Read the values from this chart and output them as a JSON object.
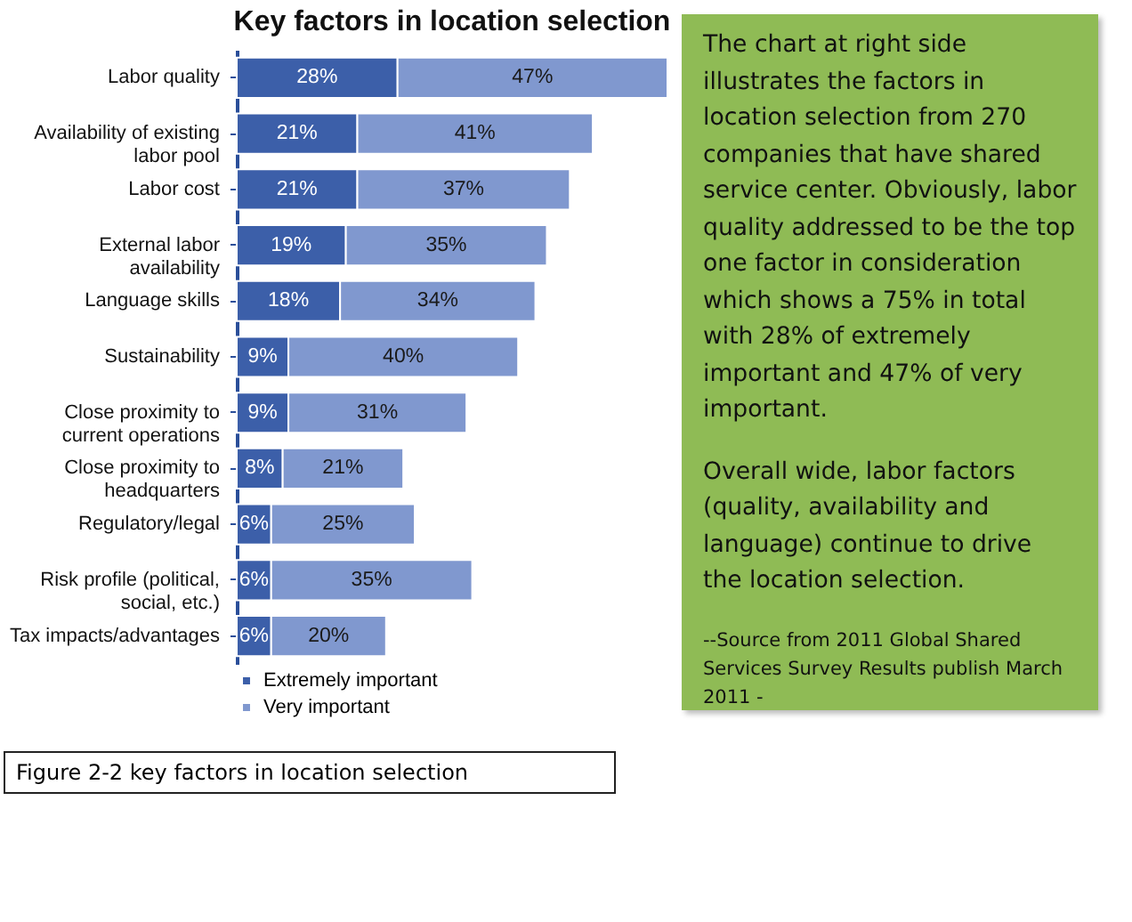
{
  "chart_data": {
    "type": "bar",
    "orientation": "horizontal",
    "stacked": true,
    "legend": "bottom",
    "title": "Key factors in location selection",
    "categories": [
      "Labor quality",
      "Availability of existing labor pool",
      "Labor cost",
      "External labor availability",
      "Language skills",
      "Sustainability",
      "Close proximity to current operations",
      "Close proximity to headquarters",
      "Regulatory/legal",
      "Risk profile (political, social, etc.)",
      "Tax impacts/advantages"
    ],
    "series": [
      {
        "name": "Extremely important",
        "color": "#3c5fa9",
        "values": [
          28,
          21,
          21,
          19,
          18,
          9,
          9,
          8,
          6,
          6,
          6
        ],
        "value_labels": [
          "28%",
          "21%",
          "21%",
          "19%",
          "18%",
          "9%",
          "9%",
          "8%",
          "6%",
          "6%",
          "6%"
        ]
      },
      {
        "name": "Very important",
        "color": "#8098cf",
        "values": [
          47,
          41,
          37,
          35,
          34,
          40,
          31,
          21,
          25,
          35,
          20
        ],
        "value_labels": [
          "47%",
          "41%",
          "37%",
          "35%",
          "34%",
          "40%",
          "31%",
          "21%",
          "25%",
          "35%",
          "20%"
        ]
      }
    ],
    "annotations": [
      "The chart at right side illustrates the factors in location selection from 270 companies that have shared service center.  Obviously, labor quality addressed to be the top one factor in consideration which shows a 75% in total with 28% of extremely important and 47% of very important.",
      "Overall wide, labor factors (quality, availability and language) continue to drive the location selection.",
      "--Source from 2011 Global Shared Services Survey Results publish March 2011 -",
      "Figure 2-2 key factors in location selection"
    ]
  }
}
